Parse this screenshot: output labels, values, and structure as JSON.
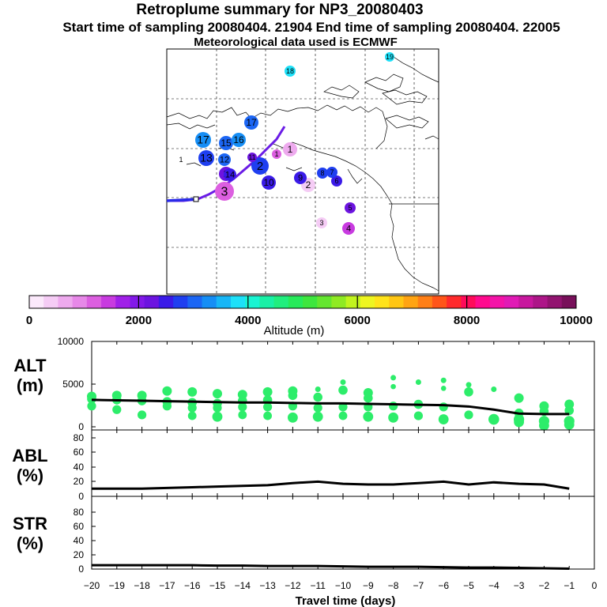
{
  "header": {
    "title": "Retroplume summary for NP3_20080403",
    "sampling": "Start time of sampling 20080404. 21904     End time of sampling 20080404. 22005",
    "met": "Meteorological data used is ECMWF"
  },
  "colorbar": {
    "label": "Altitude (m)",
    "ticks": [
      "0",
      "2000",
      "4000",
      "6000",
      "8000",
      "10000"
    ],
    "colors": [
      "#fbe9fb",
      "#f5ccf5",
      "#eeaaee",
      "#e788e8",
      "#dc5fe0",
      "#c83be0",
      "#a020e8",
      "#8218e8",
      "#6c14e0",
      "#3a1ae8",
      "#1f3ff0",
      "#1c66f4",
      "#168ef5",
      "#18b6f6",
      "#1ee0f8",
      "#19f4d2",
      "#19f0a6",
      "#21ee7e",
      "#27ea5a",
      "#3ee63e",
      "#64e62f",
      "#8fea23",
      "#c1f41e",
      "#eef520",
      "#ffe31a",
      "#ffc613",
      "#ffa413",
      "#ff7f16",
      "#ff5519",
      "#ff2a2c",
      "#ff0a5a",
      "#ff0a8e",
      "#f413a8",
      "#e11ab5",
      "#c8189e",
      "#ad1688",
      "#921470",
      "#78105a"
    ]
  },
  "map": {
    "markers": [
      {
        "label": "1",
        "color": "#222222"
      },
      {
        "label": "1",
        "color": "#eeaaee"
      },
      {
        "label": "1",
        "color": "#dc5fe0"
      },
      {
        "label": "2",
        "color": "#f5ccf5"
      },
      {
        "label": "2",
        "color": "#1f3ff0"
      },
      {
        "label": "2",
        "color": "#6c14e0"
      },
      {
        "label": "3",
        "color": "#dc5fe0"
      },
      {
        "label": "3",
        "color": "#f5ccf5"
      },
      {
        "label": "4",
        "color": "#c83be0"
      },
      {
        "label": "5",
        "color": "#6c14e0"
      },
      {
        "label": "6",
        "color": "#3a1ae8"
      },
      {
        "label": "7",
        "color": "#1f3ff0"
      },
      {
        "label": "8",
        "color": "#1f3ff0"
      },
      {
        "label": "9",
        "color": "#3a1ae8"
      },
      {
        "label": "10",
        "color": "#3a1ae8"
      },
      {
        "label": "11",
        "color": "#6c14e0"
      },
      {
        "label": "12",
        "color": "#1c66f4"
      },
      {
        "label": "13",
        "color": "#1f3ff0"
      },
      {
        "label": "14",
        "color": "#3a1ae8"
      },
      {
        "label": "15",
        "color": "#1c66f4"
      },
      {
        "label": "16",
        "color": "#168ef5"
      },
      {
        "label": "17",
        "color": "#1c66f4"
      },
      {
        "label": "17",
        "color": "#168ef5"
      },
      {
        "label": "18",
        "color": "#1ee0f8"
      },
      {
        "label": "19",
        "color": "#1ee0f8"
      }
    ]
  },
  "chart_data": [
    {
      "type": "scatter",
      "panel": "ALT",
      "ylabel": "ALT (m)",
      "ylim": [
        0,
        10000
      ],
      "yticks": [
        "10000",
        "5000",
        "0"
      ],
      "x": [
        -20,
        -19,
        -18,
        -17,
        -16,
        -15,
        -14,
        -13,
        -12,
        -11,
        -10,
        -9,
        -8,
        -7,
        -6,
        -5,
        -4,
        -3,
        -2,
        -1
      ],
      "clusters": [
        [
          3800,
          3500,
          2700
        ],
        [
          3900,
          3400,
          2300
        ],
        [
          3900,
          3300,
          1700
        ],
        [
          4400,
          3200,
          2700
        ],
        [
          4300,
          3100,
          2500,
          1600
        ],
        [
          4100,
          3000,
          2500,
          1500
        ],
        [
          4000,
          3300,
          2600,
          1700
        ],
        [
          4300,
          3400,
          2600,
          1600
        ],
        [
          4400,
          3900,
          2700,
          1400
        ],
        [
          4600,
          3700,
          2500,
          1500
        ],
        [
          5400,
          4500,
          2600,
          1600
        ],
        [
          4200,
          3600,
          2600,
          1500
        ],
        [
          5900,
          4900,
          2700,
          1400
        ],
        [
          5400,
          2900,
          1600
        ],
        [
          5600,
          4700,
          2600,
          1200
        ],
        [
          5100,
          4300,
          1700
        ],
        [
          4600,
          1200
        ],
        [
          3600,
          1900,
          1200,
          900
        ],
        [
          2700,
          2100,
          1000,
          500
        ],
        [
          2900,
          2200,
          1000,
          600
        ]
      ],
      "series": [
        {
          "name": "mean altitude",
          "values": [
            3400,
            3350,
            3300,
            3250,
            3200,
            3150,
            3100,
            3100,
            3050,
            3000,
            3000,
            2950,
            2900,
            2850,
            2800,
            2650,
            2300,
            1850,
            1800,
            1800
          ]
        }
      ]
    },
    {
      "type": "line",
      "panel": "ABL",
      "ylabel": "ABL (%)",
      "ylim": [
        0,
        95
      ],
      "yticks": [
        "80",
        "60",
        "40",
        "20",
        "0"
      ],
      "x": [
        -20,
        -19,
        -18,
        -17,
        -16,
        -15,
        -14,
        -13,
        -12,
        -11,
        -10,
        -9,
        -8,
        -7,
        -6,
        -5,
        -4,
        -3,
        -2,
        -1
      ],
      "series": [
        {
          "name": "ABL fraction",
          "values": [
            11,
            11,
            11,
            12,
            13,
            14,
            15,
            16,
            19,
            21,
            18,
            17,
            17,
            19,
            21,
            17,
            20,
            18,
            17,
            11
          ]
        }
      ]
    },
    {
      "type": "line",
      "panel": "STR",
      "ylabel": "STR (%)",
      "ylim": [
        0,
        95
      ],
      "yticks": [
        "80",
        "60",
        "40",
        "20",
        "0"
      ],
      "xlabel": "Travel time (days)",
      "xticks": [
        "−20",
        "−19",
        "−18",
        "−17",
        "−16",
        "−15",
        "−14",
        "−13",
        "−12",
        "−11",
        "−10",
        "−9",
        "−8",
        "−7",
        "−6",
        "−5",
        "−4",
        "−3",
        "−2",
        "−1",
        "0"
      ],
      "x": [
        -20,
        -19,
        -18,
        -17,
        -16,
        -15,
        -14,
        -13,
        -12,
        -11,
        -10,
        -9,
        -8,
        -7,
        -6,
        -5,
        -4,
        -3,
        -2,
        -1
      ],
      "series": [
        {
          "name": "stratosphere fraction",
          "values": [
            5,
            5,
            5,
            5,
            5,
            4.5,
            4.5,
            4,
            4,
            4,
            3.5,
            3,
            3,
            3,
            2.5,
            2,
            2,
            1.5,
            1,
            0.5
          ]
        }
      ]
    }
  ]
}
